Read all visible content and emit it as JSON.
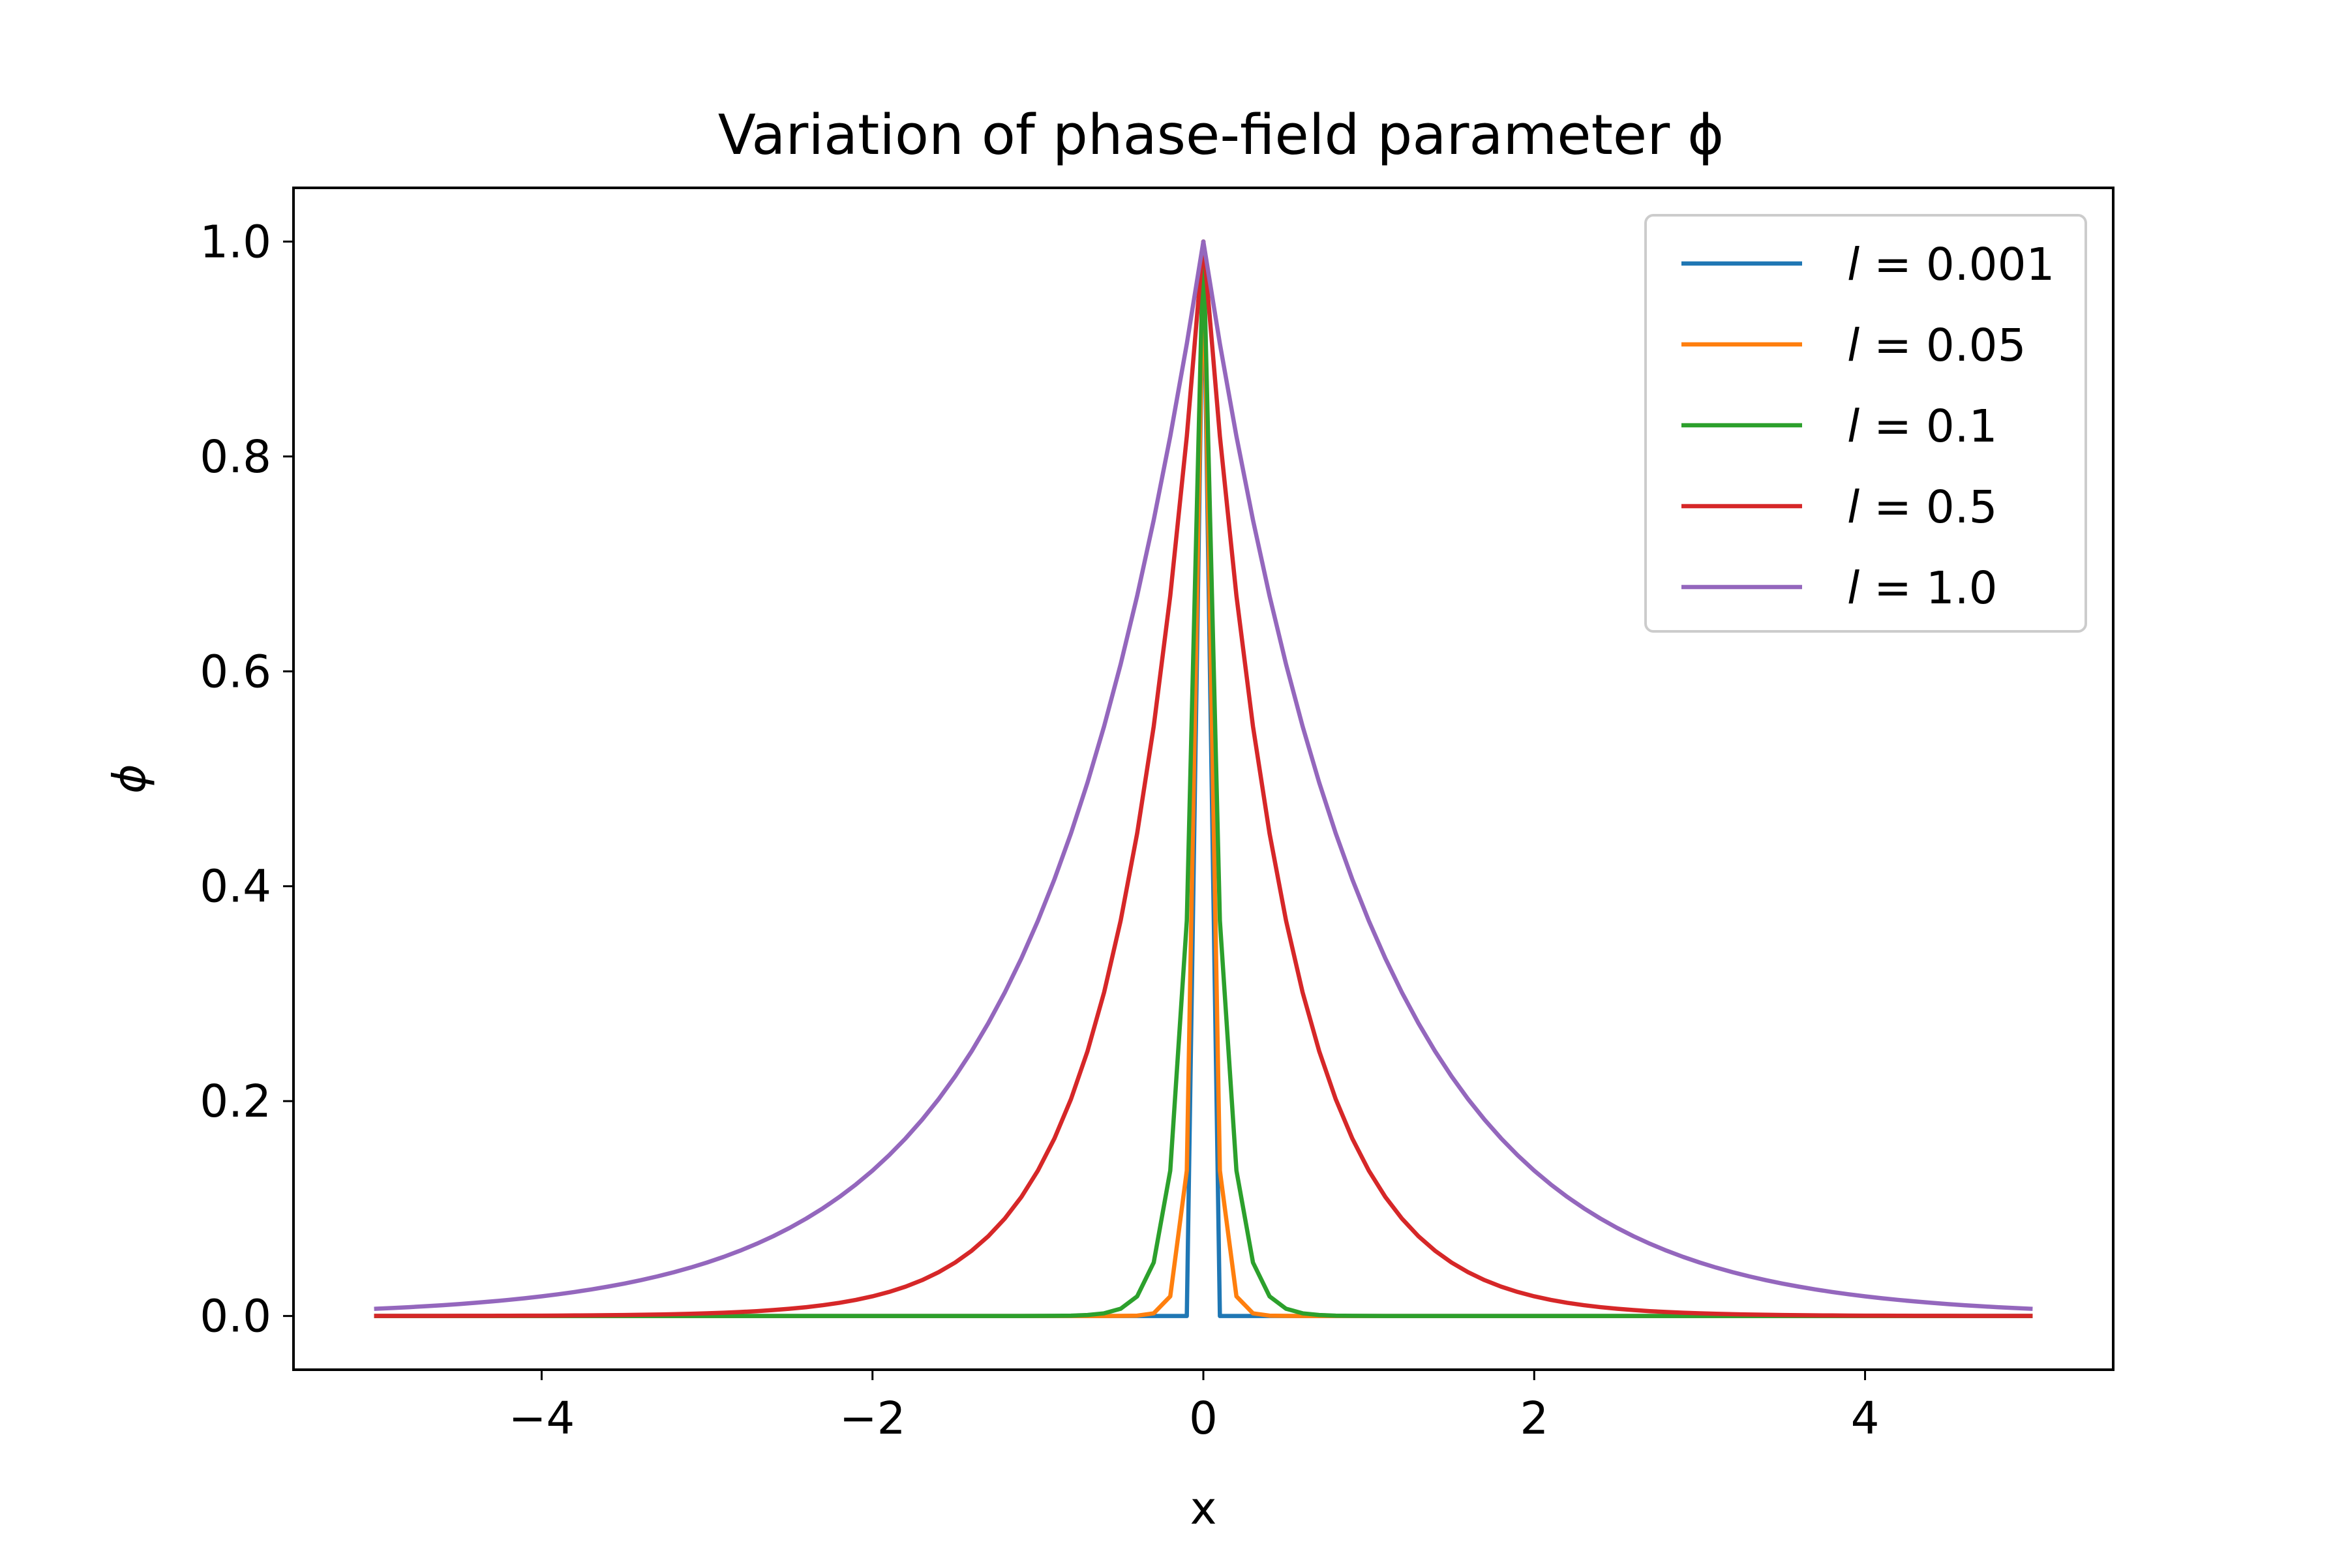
{
  "chart_data": {
    "type": "line",
    "title": "Variation of phase-field parameter ϕ",
    "xlabel": "x",
    "ylabel": "ϕ",
    "xlim": [
      -5.5,
      5.5
    ],
    "ylim": [
      -0.05,
      1.05
    ],
    "xticks": [
      -4,
      -2,
      0,
      2,
      4
    ],
    "xtick_labels": [
      "−4",
      "−2",
      "0",
      "2",
      "4"
    ],
    "yticks": [
      0.0,
      0.2,
      0.4,
      0.6,
      0.8,
      1.0
    ],
    "ytick_labels": [
      "0.0",
      "0.2",
      "0.4",
      "0.6",
      "0.8",
      "1.0"
    ],
    "grid": false,
    "legend_position": "top-right",
    "x_domain": [
      -5,
      5
    ],
    "sample_count": 101,
    "series": [
      {
        "name": "l = 0.001",
        "label_var": "l",
        "label_value": "= 0.001",
        "l": 0.001,
        "color": "#1f77b4"
      },
      {
        "name": "l = 0.05",
        "label_var": "l",
        "label_value": "= 0.05",
        "l": 0.05,
        "color": "#ff7f0e"
      },
      {
        "name": "l = 0.1",
        "label_var": "l",
        "label_value": "= 0.1",
        "l": 0.1,
        "color": "#2ca02c"
      },
      {
        "name": "l = 0.5",
        "label_var": "l",
        "label_value": "= 0.5",
        "l": 0.5,
        "color": "#d62728"
      },
      {
        "name": "l = 1.0",
        "label_var": "l",
        "label_value": "= 1.0",
        "l": 1.0,
        "color": "#9467bd"
      }
    ]
  }
}
